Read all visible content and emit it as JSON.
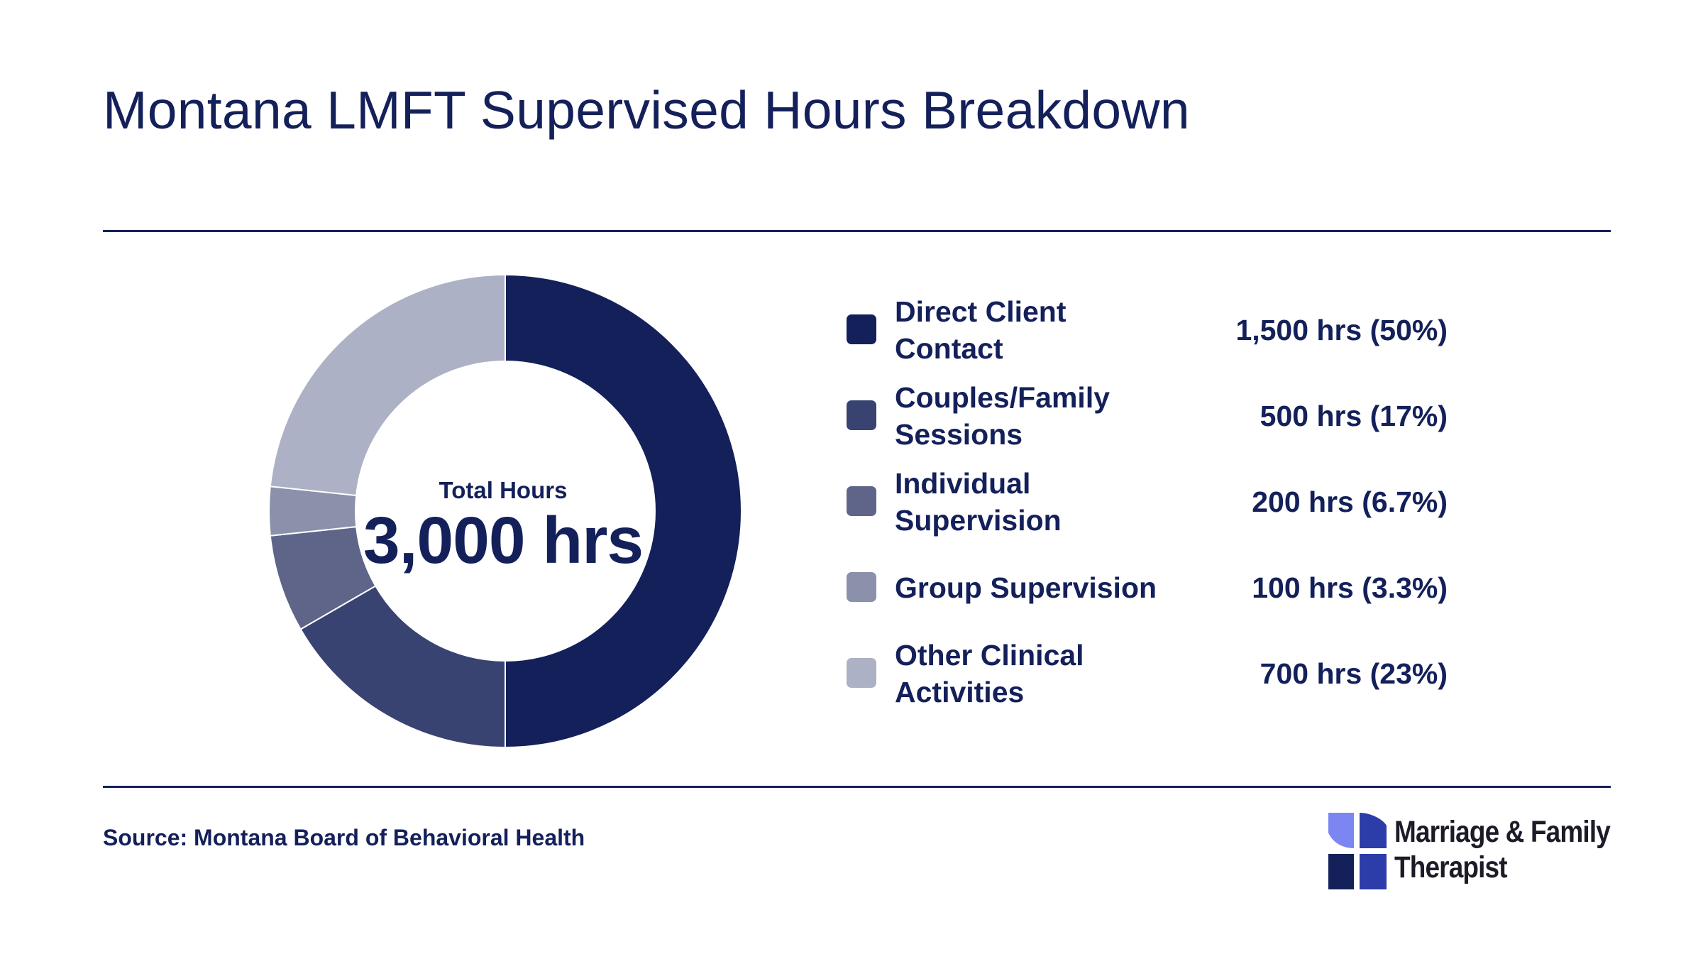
{
  "title": "Montana LMFT Supervised Hours Breakdown",
  "center": {
    "caption": "Total Hours",
    "total": "3,000 hrs"
  },
  "source": "Source: Montana Board of Behavioral Health",
  "brand": {
    "name_line1": "Marriage & Family",
    "name_line2": "Therapist",
    "icon": "puzzle-cross-logo-icon",
    "icon_colors": [
      "#7b86f2",
      "#2c3ca8",
      "#14205a"
    ]
  },
  "colors": {
    "text": "#14205a",
    "rule": "#14205a",
    "slice_border": "#ffffff"
  },
  "legend": [
    {
      "label": "Direct Client Contact",
      "value": "1,500 hrs (50%)"
    },
    {
      "label": "Couples/Family Sessions",
      "value": "500 hrs (17%)"
    },
    {
      "label": "Individual Supervision",
      "value": "200 hrs (6.7%)"
    },
    {
      "label": "Group Supervision",
      "value": "100 hrs (3.3%)"
    },
    {
      "label": "Other Clinical Activities",
      "value": "700 hrs (23%)"
    }
  ],
  "chart_data": {
    "type": "pie",
    "style": "donut",
    "title": "Montana LMFT Supervised Hours Breakdown",
    "unit": "hrs",
    "total": 3000,
    "start_angle": "12 o'clock",
    "direction": "clockwise",
    "categories": [
      "Direct Client Contact",
      "Couples/Family Sessions",
      "Individual Supervision",
      "Group Supervision",
      "Other Clinical Activities"
    ],
    "values": [
      1500,
      500,
      200,
      100,
      700
    ],
    "percent_labels": [
      "50%",
      "17%",
      "6.7%",
      "3.3%",
      "23%"
    ],
    "colors": [
      "#14205a",
      "#384372",
      "#5e6589",
      "#8b91ab",
      "#adb1c5"
    ],
    "legend_position": "right"
  }
}
